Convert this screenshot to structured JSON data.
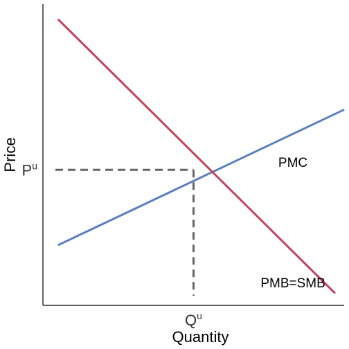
{
  "chart_data": {
    "type": "line",
    "title": "",
    "xlabel": "Quantity",
    "ylabel": "Price",
    "xlim": [
      0,
      10
    ],
    "ylim": [
      0,
      10
    ],
    "grid": false,
    "legend": "none",
    "x_ticks": [
      {
        "base": "Q",
        "sup": "u",
        "value": 5
      }
    ],
    "y_ticks": [
      {
        "base": "P",
        "sup": "u",
        "value": 4.5
      }
    ],
    "series": [
      {
        "name": "PMC",
        "color": "#5b7fbd",
        "points": [
          [
            0.5,
            2
          ],
          [
            10,
            6.5
          ]
        ]
      },
      {
        "name": "PMB=SMB",
        "color": "#c1435e",
        "points": [
          [
            0.5,
            9.5
          ],
          [
            9.7,
            0.4
          ]
        ]
      }
    ],
    "equilibrium": {
      "x": 5,
      "y": 4.5,
      "line_color": "#666666"
    },
    "annotations": [
      {
        "text": "PMC",
        "series": "PMC",
        "x": 8.3,
        "y": 4.6
      },
      {
        "text": "PMB=SMB",
        "series": "PMB=SMB",
        "x": 8.3,
        "y": 0.6
      }
    ]
  }
}
